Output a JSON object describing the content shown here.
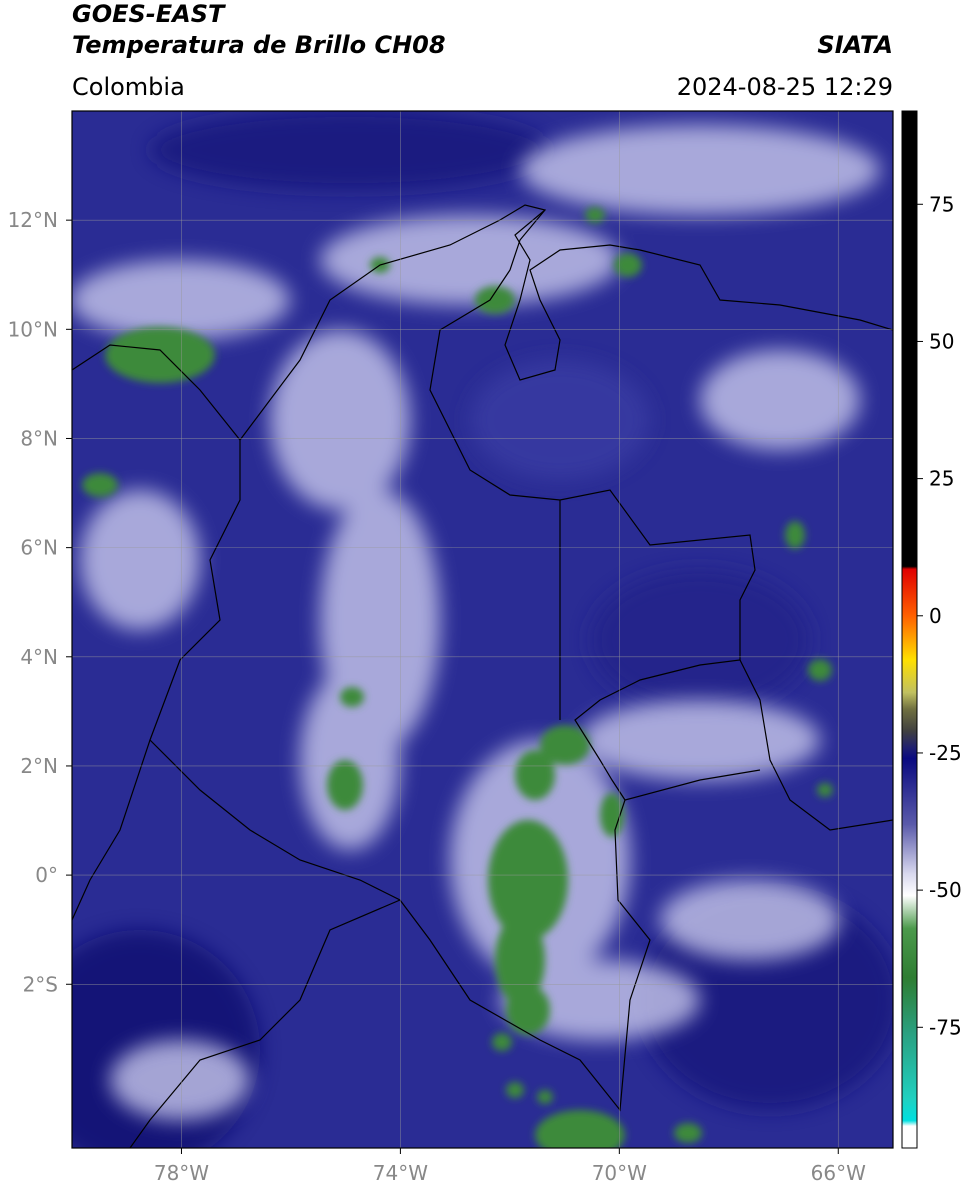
{
  "header": {
    "title": "GOES-EAST",
    "subtitle": "Temperatura de Brillo CH08",
    "source": "SIATA",
    "region": "Colombia",
    "datetime": "2024-08-25 12:29"
  },
  "map": {
    "xlim": [
      -80,
      -65
    ],
    "ylim": [
      -5,
      14
    ],
    "grid": true,
    "xticks": [
      {
        "value": -78,
        "label": "78°W"
      },
      {
        "value": -74,
        "label": "74°W"
      },
      {
        "value": -70,
        "label": "70°W"
      },
      {
        "value": -66,
        "label": "66°W"
      }
    ],
    "yticks": [
      {
        "value": 12,
        "label": "12°N"
      },
      {
        "value": 10,
        "label": "10°N"
      },
      {
        "value": 8,
        "label": "8°N"
      },
      {
        "value": 6,
        "label": "6°N"
      },
      {
        "value": 4,
        "label": "4°N"
      },
      {
        "value": 2,
        "label": "2°N"
      },
      {
        "value": 0,
        "label": "0°"
      },
      {
        "value": -2,
        "label": "2°S"
      }
    ]
  },
  "colorbar": {
    "lim": [
      -97,
      92
    ],
    "ticks": [
      75,
      50,
      25,
      0,
      -25,
      -50,
      -75
    ],
    "colormap": [
      [
        92,
        "#000000"
      ],
      [
        9,
        "#000000"
      ],
      [
        8.5,
        "#e00000"
      ],
      [
        0,
        "#ff6000"
      ],
      [
        -8,
        "#ffe000"
      ],
      [
        -14,
        "#c0c060"
      ],
      [
        -17,
        "#707040"
      ],
      [
        -21,
        "#404040"
      ],
      [
        -24,
        "#202070"
      ],
      [
        -26,
        "#0a0a80"
      ],
      [
        -38,
        "#5a5aaa"
      ],
      [
        -47,
        "#d8d8ee"
      ],
      [
        -51,
        "#ffffff"
      ],
      [
        -57,
        "#4c9a4c"
      ],
      [
        -66,
        "#2e7d32"
      ],
      [
        -76,
        "#2aa080"
      ],
      [
        -88,
        "#20d0c0"
      ],
      [
        -92,
        "#00e0e0"
      ],
      [
        -93,
        "#ffffff"
      ],
      [
        -97,
        "#ffffff"
      ]
    ]
  }
}
